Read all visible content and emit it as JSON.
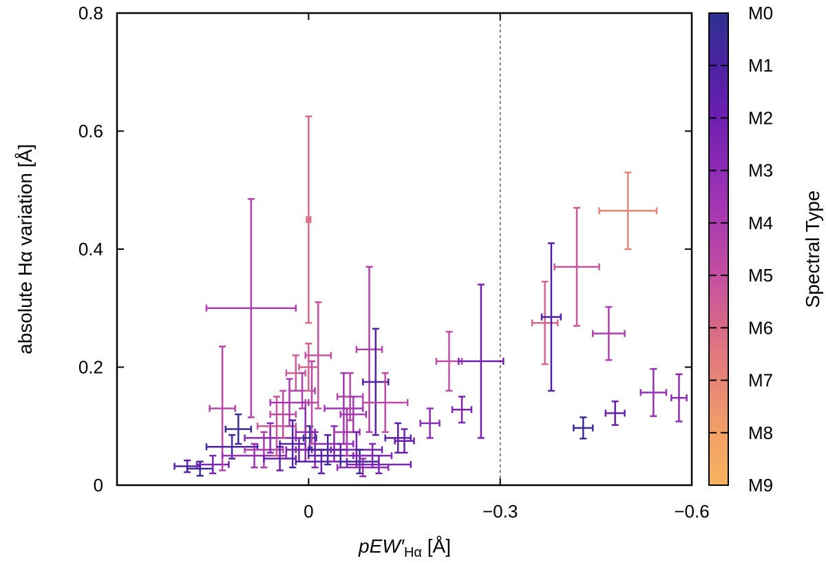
{
  "chart_data": {
    "type": "scatter",
    "xlabel": "pEW′Hα [Å]",
    "xlabel_parts": {
      "main": "pEW′",
      "sub": "Hα",
      "unit": " [Å]"
    },
    "ylabel": "absolute Hα variation [Å]",
    "xlim": [
      0.3,
      -0.6
    ],
    "ylim": [
      0,
      0.8
    ],
    "x_ticks": [
      {
        "v": 0,
        "label": "0"
      },
      {
        "v": -0.3,
        "label": "−0.3"
      },
      {
        "v": -0.6,
        "label": "−0.6"
      }
    ],
    "y_ticks": [
      {
        "v": 0,
        "label": "0"
      },
      {
        "v": 0.2,
        "label": "0.2"
      },
      {
        "v": 0.4,
        "label": "0.4"
      },
      {
        "v": 0.6,
        "label": "0.6"
      },
      {
        "v": 0.8,
        "label": "0.8"
      }
    ],
    "reference_line_x": -0.3,
    "colorbar": {
      "label": "Spectral Type",
      "ticks": [
        "M0",
        "M1",
        "M2",
        "M3",
        "M4",
        "M5",
        "M6",
        "M7",
        "M8",
        "M9"
      ],
      "colors": [
        "#2e318f",
        "#4b22a2",
        "#6c1fb0",
        "#8e2bb5",
        "#ab3bb0",
        "#c4519f",
        "#d86a86",
        "#e78676",
        "#f1a166",
        "#f6b25e"
      ]
    },
    "series": [
      {
        "name": "stars",
        "points": [
          {
            "x": 0.19,
            "y": 0.032,
            "xerr": 0.02,
            "yerr": 0.01,
            "sp": 1.5
          },
          {
            "x": 0.17,
            "y": 0.028,
            "xerr": 0.02,
            "yerr": 0.012,
            "sp": 0.5
          },
          {
            "x": 0.15,
            "y": 0.035,
            "xerr": 0.025,
            "yerr": 0.015,
            "sp": 2.5
          },
          {
            "x": 0.135,
            "y": 0.13,
            "xerr": 0.02,
            "yerr": 0.105,
            "sp": 4.5
          },
          {
            "x": 0.12,
            "y": 0.065,
            "xerr": 0.04,
            "yerr": 0.02,
            "sp": 0.8
          },
          {
            "x": 0.11,
            "y": 0.095,
            "xerr": 0.02,
            "yerr": 0.025,
            "sp": 0.3
          },
          {
            "x": 0.09,
            "y": 0.3,
            "xerr": 0.07,
            "yerr": 0.185,
            "sp": 4.2
          },
          {
            "x": 0.085,
            "y": 0.05,
            "xerr": 0.05,
            "yerr": 0.02,
            "sp": 3.3
          },
          {
            "x": 0.07,
            "y": 0.06,
            "xerr": 0.03,
            "yerr": 0.03,
            "sp": 4.1
          },
          {
            "x": 0.06,
            "y": 0.08,
            "xerr": 0.04,
            "yerr": 0.025,
            "sp": 2.8
          },
          {
            "x": 0.05,
            "y": 0.1,
            "xerr": 0.03,
            "yerr": 0.05,
            "sp": 5.2
          },
          {
            "x": 0.045,
            "y": 0.045,
            "xerr": 0.025,
            "yerr": 0.02,
            "sp": 1.8
          },
          {
            "x": 0.04,
            "y": 0.12,
            "xerr": 0.02,
            "yerr": 0.04,
            "sp": 4.8
          },
          {
            "x": 0.03,
            "y": 0.14,
            "xerr": 0.03,
            "yerr": 0.04,
            "sp": 3.9
          },
          {
            "x": 0.025,
            "y": 0.07,
            "xerr": 0.02,
            "yerr": 0.04,
            "sp": 1.2
          },
          {
            "x": 0.02,
            "y": 0.19,
            "xerr": 0.015,
            "yerr": 0.03,
            "sp": 5.5
          },
          {
            "x": 0.015,
            "y": 0.06,
            "xerr": 0.02,
            "yerr": 0.02,
            "sp": 2.2
          },
          {
            "x": 0.01,
            "y": 0.16,
            "xerr": 0.02,
            "yerr": 0.03,
            "sp": 4.3
          },
          {
            "x": 0.005,
            "y": 0.09,
            "xerr": 0.015,
            "yerr": 0.05,
            "sp": 3.1
          },
          {
            "x": 0.0,
            "y": 0.45,
            "xerr": 0.003,
            "yerr": 0.175,
            "sp": 6.0
          },
          {
            "x": 0.0,
            "y": 0.2,
            "xerr": 0.015,
            "yerr": 0.04,
            "sp": 5.7
          },
          {
            "x": -0.002,
            "y": 0.08,
            "xerr": 0.01,
            "yerr": 0.02,
            "sp": 0.4
          },
          {
            "x": -0.005,
            "y": 0.14,
            "xerr": 0.01,
            "yerr": 0.07,
            "sp": 4.6
          },
          {
            "x": -0.01,
            "y": 0.06,
            "xerr": 0.03,
            "yerr": 0.03,
            "sp": 2.6
          },
          {
            "x": -0.015,
            "y": 0.22,
            "xerr": 0.02,
            "yerr": 0.09,
            "sp": 5.0
          },
          {
            "x": -0.02,
            "y": 0.04,
            "xerr": 0.04,
            "yerr": 0.02,
            "sp": 1.6
          },
          {
            "x": -0.03,
            "y": 0.06,
            "xerr": 0.03,
            "yerr": 0.025,
            "sp": 0.9
          },
          {
            "x": -0.04,
            "y": 0.07,
            "xerr": 0.03,
            "yerr": 0.03,
            "sp": 2.9
          },
          {
            "x": -0.05,
            "y": 0.05,
            "xerr": 0.05,
            "yerr": 0.02,
            "sp": 1.4
          },
          {
            "x": -0.055,
            "y": 0.13,
            "xerr": 0.03,
            "yerr": 0.06,
            "sp": 3.6
          },
          {
            "x": -0.06,
            "y": 0.09,
            "xerr": 0.02,
            "yerr": 0.04,
            "sp": 4.0
          },
          {
            "x": -0.065,
            "y": 0.15,
            "xerr": 0.02,
            "yerr": 0.04,
            "sp": 4.4
          },
          {
            "x": -0.07,
            "y": 0.12,
            "xerr": 0.02,
            "yerr": 0.03,
            "sp": 3.8
          },
          {
            "x": -0.075,
            "y": 0.06,
            "xerr": 0.04,
            "yerr": 0.03,
            "sp": 2.1
          },
          {
            "x": -0.08,
            "y": 0.04,
            "xerr": 0.03,
            "yerr": 0.02,
            "sp": 0.7
          },
          {
            "x": -0.085,
            "y": 0.03,
            "xerr": 0.04,
            "yerr": 0.015,
            "sp": 3.2
          },
          {
            "x": -0.095,
            "y": 0.23,
            "xerr": 0.02,
            "yerr": 0.14,
            "sp": 4.3
          },
          {
            "x": -0.1,
            "y": 0.05,
            "xerr": 0.03,
            "yerr": 0.02,
            "sp": 2.7
          },
          {
            "x": -0.105,
            "y": 0.175,
            "xerr": 0.02,
            "yerr": 0.09,
            "sp": 1.3
          },
          {
            "x": -0.11,
            "y": 0.035,
            "xerr": 0.05,
            "yerr": 0.015,
            "sp": 2.4
          },
          {
            "x": -0.12,
            "y": 0.14,
            "xerr": 0.035,
            "yerr": 0.05,
            "sp": 4.7
          },
          {
            "x": -0.14,
            "y": 0.08,
            "xerr": 0.02,
            "yerr": 0.025,
            "sp": 1.5
          },
          {
            "x": -0.15,
            "y": 0.075,
            "xerr": 0.015,
            "yerr": 0.02,
            "sp": 2.0
          },
          {
            "x": -0.19,
            "y": 0.105,
            "xerr": 0.015,
            "yerr": 0.025,
            "sp": 3.0
          },
          {
            "x": -0.22,
            "y": 0.21,
            "xerr": 0.02,
            "yerr": 0.05,
            "sp": 4.8
          },
          {
            "x": -0.24,
            "y": 0.128,
            "xerr": 0.015,
            "yerr": 0.022,
            "sp": 2.5
          },
          {
            "x": -0.27,
            "y": 0.21,
            "xerr": 0.035,
            "yerr": 0.13,
            "sp": 2.2
          },
          {
            "x": -0.37,
            "y": 0.275,
            "xerr": 0.02,
            "yerr": 0.07,
            "sp": 5.8
          },
          {
            "x": -0.38,
            "y": 0.285,
            "xerr": 0.015,
            "yerr": 0.125,
            "sp": 1.2
          },
          {
            "x": -0.42,
            "y": 0.37,
            "xerr": 0.035,
            "yerr": 0.1,
            "sp": 5.2
          },
          {
            "x": -0.43,
            "y": 0.097,
            "xerr": 0.015,
            "yerr": 0.018,
            "sp": 0.5
          },
          {
            "x": -0.47,
            "y": 0.257,
            "xerr": 0.025,
            "yerr": 0.045,
            "sp": 4.2
          },
          {
            "x": -0.48,
            "y": 0.122,
            "xerr": 0.015,
            "yerr": 0.02,
            "sp": 1.8
          },
          {
            "x": -0.5,
            "y": 0.465,
            "xerr": 0.045,
            "yerr": 0.065,
            "sp": 7.0
          },
          {
            "x": -0.54,
            "y": 0.157,
            "xerr": 0.02,
            "yerr": 0.04,
            "sp": 3.3
          },
          {
            "x": -0.58,
            "y": 0.148,
            "xerr": 0.012,
            "yerr": 0.04,
            "sp": 3.0
          }
        ]
      }
    ]
  }
}
